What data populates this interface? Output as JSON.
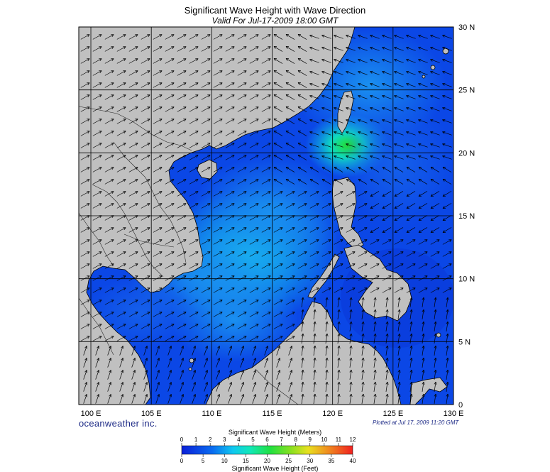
{
  "title": "Significant Wave Height with Wave Direction",
  "subtitle": "Valid For Jul-17-2009 18:00 GMT",
  "brand": "oceanweather inc.",
  "plotted": "Plotted at Jul 17, 2009 11:20 GMT",
  "colors": {
    "land": "#c0c0c0",
    "background_wave": "#0b47e6",
    "grid": "#000000",
    "arrow": "#000000"
  },
  "map": {
    "lon_range": [
      99,
      130
    ],
    "lat_range": [
      0,
      30
    ],
    "lon_labels": [
      "100 E",
      "105 E",
      "110 E",
      "115 E",
      "120 E",
      "125 E",
      "130 E"
    ],
    "lat_labels": [
      "0",
      "5 N",
      "10 N",
      "15 N",
      "20 N",
      "25 N",
      "30 N"
    ]
  },
  "colorbar": {
    "meters_title": "Significant Wave Height (Meters)",
    "feet_title": "Significant Wave Height (Feet)",
    "meters_ticks": [
      "0",
      "1",
      "2",
      "3",
      "4",
      "5",
      "6",
      "7",
      "8",
      "9",
      "10",
      "11",
      "12"
    ],
    "feet_ticks": [
      "0",
      "5",
      "10",
      "15",
      "20",
      "25",
      "30",
      "35",
      "40"
    ]
  }
}
